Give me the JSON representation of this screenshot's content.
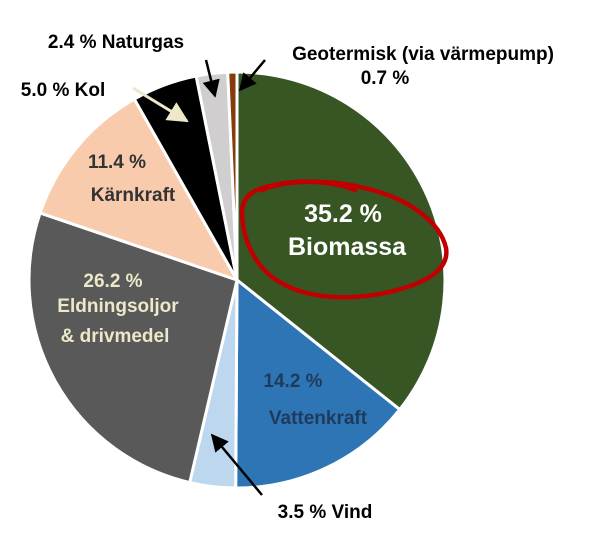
{
  "chart_data": {
    "type": "pie",
    "title": "",
    "slices": [
      {
        "pct_label": "35.2 %",
        "name": "Biomassa",
        "value": 35.2,
        "color": "#375623"
      },
      {
        "pct_label": "14.2 %",
        "name": "Vattenkraft",
        "value": 14.2,
        "color": "#2e75b6"
      },
      {
        "pct_label": "3.5 %",
        "name": "Vind",
        "value": 3.5,
        "color": "#bdd7ee"
      },
      {
        "pct_label": "26.2 %",
        "name": "Eldningsoljor & drivmedel",
        "value": 26.2,
        "color": "#595959"
      },
      {
        "pct_label": "11.4 %",
        "name": "Kärnkraft",
        "value": 11.4,
        "color": "#f8cbad"
      },
      {
        "pct_label": "5.0 %",
        "name": "Kol",
        "value": 5.0,
        "color": "#000000"
      },
      {
        "pct_label": "2.4 %",
        "name": "Naturgas",
        "value": 2.4,
        "color": "#d0cece"
      },
      {
        "pct_label": "0.7 %",
        "name": "Geotermisk (via värmepump)",
        "value": 0.7,
        "color": "#843c0c"
      }
    ],
    "highlight": {
      "slice": "Biomassa",
      "style": "hand-drawn circle",
      "color": "#c00000"
    }
  },
  "labels": {
    "biomassa_pct": "35.2 %",
    "biomassa_name": "Biomassa",
    "vatten_pct": "14.2 %",
    "vatten_name": "Vattenkraft",
    "vind": "3.5 % Vind",
    "olja_pct": "26.2 %",
    "olja_line1": "Eldningsoljor",
    "olja_line2": "& drivmedel",
    "karn_pct": "11.4 %",
    "karn_name": "Kärnkraft",
    "kol": "5.0 % Kol",
    "naturgas": "2.4 % Naturgas",
    "geo_line1": "Geotermisk (via värmepump)",
    "geo_line2": "0.7 %"
  }
}
